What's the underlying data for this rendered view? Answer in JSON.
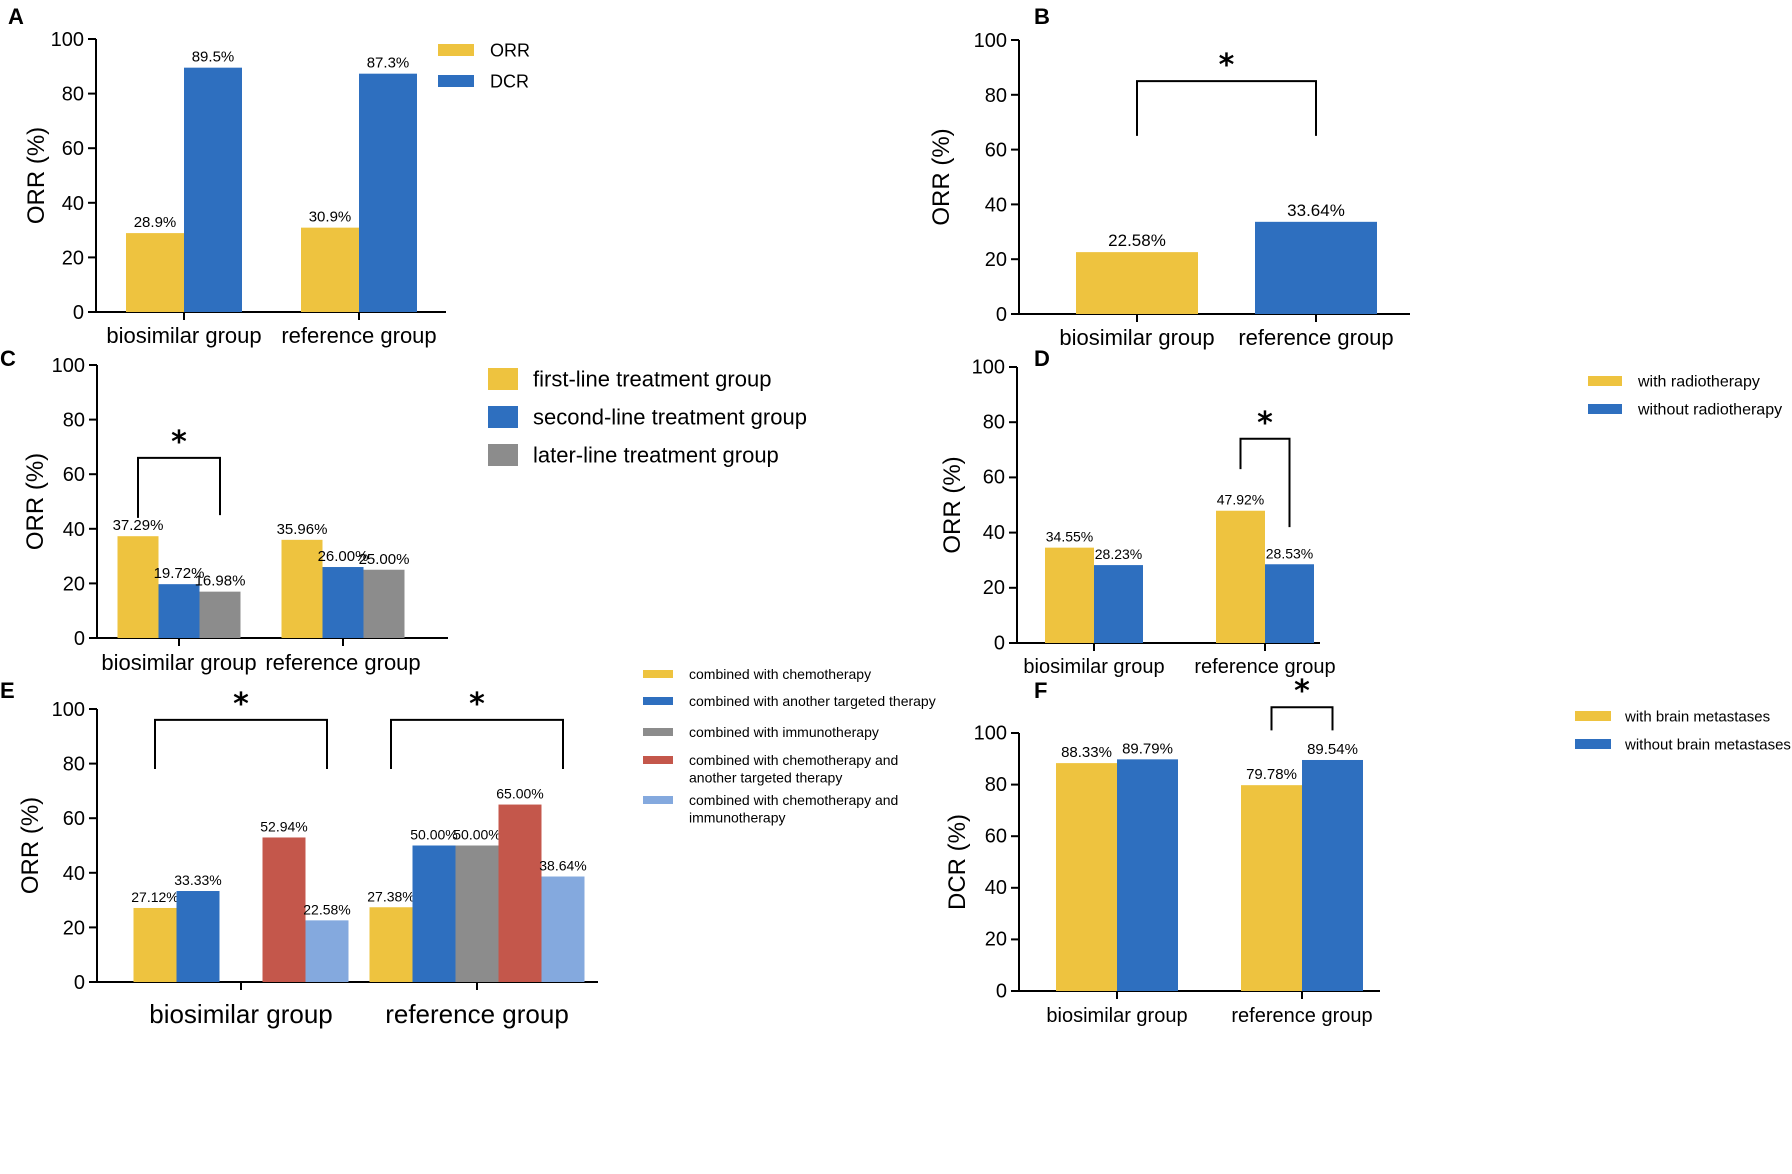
{
  "colors": {
    "yellow": "#EEC33F",
    "blue": "#2E6FBF",
    "gray": "#8C8C8C",
    "red": "#C4574B",
    "lightblue": "#84A9DE",
    "axis": "#000000"
  },
  "chart_data": [
    {
      "panel": "A",
      "type": "bar",
      "ylabel": "ORR (%)",
      "ylim": [
        0,
        100
      ],
      "yticks": [
        "0",
        "20",
        "40",
        "60",
        "80",
        "100"
      ],
      "categories": [
        "biosimilar group",
        "reference group"
      ],
      "series": [
        {
          "name": "ORR",
          "color": "yellow",
          "values": [
            28.9,
            30.9
          ],
          "labels": [
            "28.9%",
            "30.9%"
          ]
        },
        {
          "name": "DCR",
          "color": "blue",
          "values": [
            89.5,
            87.3
          ],
          "labels": [
            "89.5%",
            "87.3%"
          ]
        }
      ],
      "legend_position": "top-right",
      "significance": []
    },
    {
      "panel": "B",
      "type": "bar",
      "ylabel": "ORR (%)",
      "ylim": [
        0,
        100
      ],
      "yticks": [
        "0",
        "20",
        "40",
        "60",
        "80",
        "100"
      ],
      "categories": [
        "biosimilar group",
        "reference group"
      ],
      "series": [
        {
          "name": "",
          "color": "yellow",
          "values": [
            22.58,
            null
          ],
          "labels": [
            "22.58%",
            ""
          ]
        },
        {
          "name": "",
          "color": "blue",
          "values": [
            null,
            33.64
          ],
          "labels": [
            "",
            "33.64%"
          ]
        }
      ],
      "legend_position": "none",
      "significance": [
        {
          "label": "*",
          "type": "between-categories",
          "from": "biosimilar group",
          "to": "reference group",
          "level": 85
        }
      ]
    },
    {
      "panel": "C",
      "type": "bar",
      "ylabel": "ORR (%)",
      "ylim": [
        0,
        100
      ],
      "yticks": [
        "0",
        "20",
        "40",
        "60",
        "80",
        "100"
      ],
      "categories": [
        "biosimilar group",
        "reference group"
      ],
      "series": [
        {
          "name": "first-line treatment group",
          "color": "yellow",
          "values": [
            37.29,
            35.96
          ],
          "labels": [
            "37.29%",
            "35.96%"
          ]
        },
        {
          "name": "second-line treatment group",
          "color": "blue",
          "values": [
            19.72,
            26.0
          ],
          "labels": [
            "19.72%",
            "26.00%"
          ]
        },
        {
          "name": "later-line treatment group",
          "color": "gray",
          "values": [
            16.98,
            25.0
          ],
          "labels": [
            "16.98%",
            "25.00%"
          ]
        }
      ],
      "legend_position": "top-right",
      "significance": [
        {
          "label": "*",
          "type": "within-category",
          "category": "biosimilar group",
          "from_series": 0,
          "to_series": 2,
          "level": 66
        }
      ]
    },
    {
      "panel": "D",
      "type": "bar",
      "ylabel": "ORR (%)",
      "ylim": [
        0,
        100
      ],
      "yticks": [
        "0",
        "20",
        "40",
        "60",
        "80",
        "100"
      ],
      "categories": [
        "biosimilar group",
        "reference group"
      ],
      "series": [
        {
          "name": "with radiotherapy",
          "color": "yellow",
          "values": [
            34.55,
            47.92
          ],
          "labels": [
            "34.55%",
            "47.92%"
          ]
        },
        {
          "name": "without radiotherapy",
          "color": "blue",
          "values": [
            28.23,
            28.53
          ],
          "labels": [
            "28.23%",
            "28.53%"
          ]
        }
      ],
      "legend_position": "top-right",
      "significance": [
        {
          "label": "*",
          "type": "within-category",
          "category": "reference group",
          "from_series": 0,
          "to_series": 1,
          "level": 74
        }
      ]
    },
    {
      "panel": "E",
      "type": "bar",
      "ylabel": "ORR (%)",
      "ylim": [
        0,
        100
      ],
      "yticks": [
        "0",
        "20",
        "40",
        "60",
        "80",
        "100"
      ],
      "categories": [
        "biosimilar group",
        "reference group"
      ],
      "series": [
        {
          "name": "combined with chemotherapy",
          "color": "yellow",
          "values": [
            27.12,
            27.38
          ],
          "labels": [
            "27.12%",
            "27.38%"
          ]
        },
        {
          "name": "combined with another targeted therapy",
          "color": "blue",
          "values": [
            33.33,
            50.0
          ],
          "labels": [
            "33.33%",
            "50.00%"
          ]
        },
        {
          "name": "combined with immunotherapy",
          "color": "gray",
          "values": [
            null,
            50.0
          ],
          "labels": [
            "",
            "50.00%"
          ]
        },
        {
          "name": "combined with chemotherapy and another targeted therapy",
          "color": "red",
          "values": [
            52.94,
            65.0
          ],
          "labels": [
            "52.94%",
            "65.00%"
          ]
        },
        {
          "name": "combined with chemotherapy and immunotherapy",
          "color": "lightblue",
          "values": [
            22.58,
            38.64
          ],
          "labels": [
            "22.58%",
            "38.64%"
          ]
        }
      ],
      "legend_position": "top-right",
      "significance": [
        {
          "label": "*",
          "type": "within-category",
          "category": "biosimilar group",
          "from_series": 0,
          "to_series": 4,
          "level": 96
        },
        {
          "label": "*",
          "type": "within-category",
          "category": "reference group",
          "from_series": 0,
          "to_series": 4,
          "level": 96
        }
      ]
    },
    {
      "panel": "F",
      "type": "bar",
      "ylabel": "DCR (%)",
      "ylim": [
        0,
        100
      ],
      "yticks": [
        "0",
        "20",
        "40",
        "60",
        "80",
        "100"
      ],
      "categories": [
        "biosimilar group",
        "reference group"
      ],
      "series": [
        {
          "name": "with brain metastases",
          "color": "yellow",
          "values": [
            88.33,
            79.78
          ],
          "labels": [
            "88.33%",
            "79.78%"
          ]
        },
        {
          "name": "without brain metastases",
          "color": "blue",
          "values": [
            89.79,
            89.54
          ],
          "labels": [
            "89.79%",
            "89.54%"
          ]
        }
      ],
      "legend_position": "top-right",
      "significance": [
        {
          "label": "*",
          "type": "within-category",
          "category": "reference group",
          "from_series": 0,
          "to_series": 1,
          "level": 110
        }
      ]
    }
  ]
}
